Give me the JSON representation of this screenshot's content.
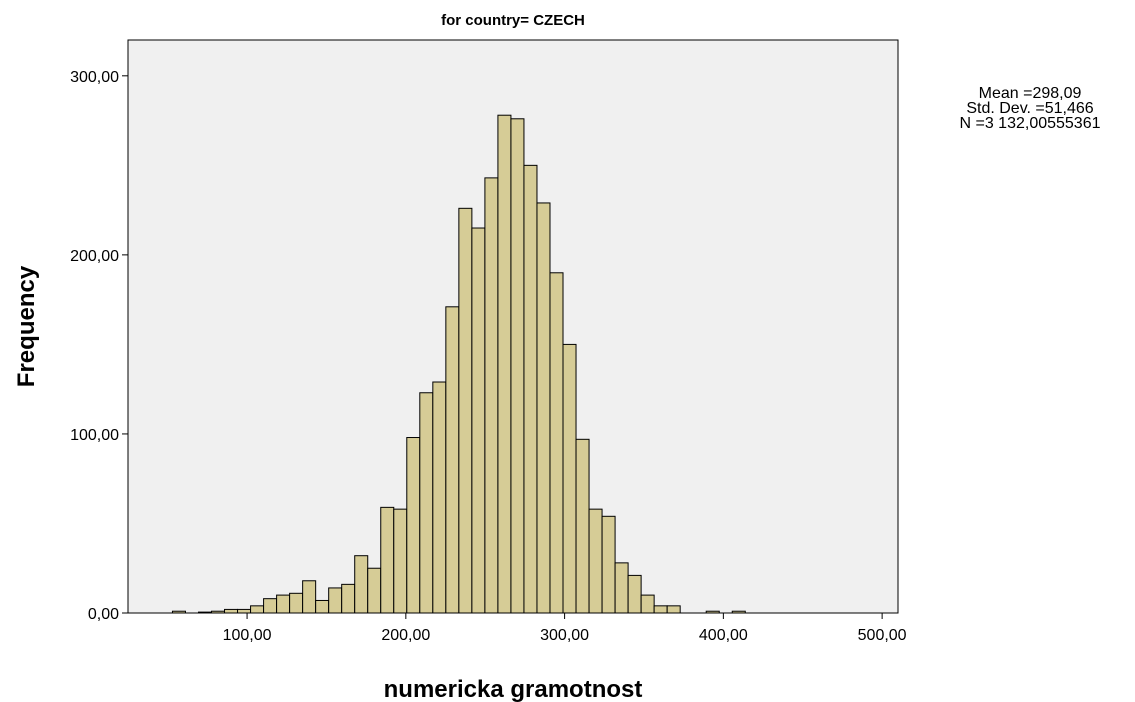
{
  "chart_data": {
    "type": "bar",
    "title": "for country= CZECH",
    "xlabel": "numericka gramotnost",
    "ylabel": "Frequency",
    "xlim": [
      25,
      510
    ],
    "ylim": [
      0,
      320
    ],
    "xticks": [
      {
        "value": 100,
        "label": "100,00"
      },
      {
        "value": 200,
        "label": "200,00"
      },
      {
        "value": 300,
        "label": "300,00"
      },
      {
        "value": 400,
        "label": "400,00"
      },
      {
        "value": 500,
        "label": "500,00"
      }
    ],
    "yticks": [
      {
        "value": 0,
        "label": "0,00"
      },
      {
        "value": 100,
        "label": "100,00"
      },
      {
        "value": 200,
        "label": "200,00"
      },
      {
        "value": 300,
        "label": "300,00"
      }
    ],
    "bin_width": 8.2,
    "bin_start": 53,
    "values": [
      1,
      0,
      0.5,
      1,
      2,
      2,
      4,
      8,
      10,
      11,
      18,
      7,
      14,
      16,
      32,
      25,
      59,
      58,
      98,
      123,
      129,
      171,
      226,
      215,
      243,
      278,
      276,
      250,
      229,
      190,
      150,
      97,
      58,
      54,
      28,
      21,
      10,
      4,
      4,
      0,
      0,
      1,
      0,
      1,
      0
    ],
    "bar_color": "#d6cc96",
    "plot_background": "#f0f0f0",
    "grid": false,
    "legend": "none"
  },
  "stats": {
    "mean": "Mean =298,09",
    "std": "Std. Dev. =51,466",
    "n": "N =3 132,00555361"
  }
}
